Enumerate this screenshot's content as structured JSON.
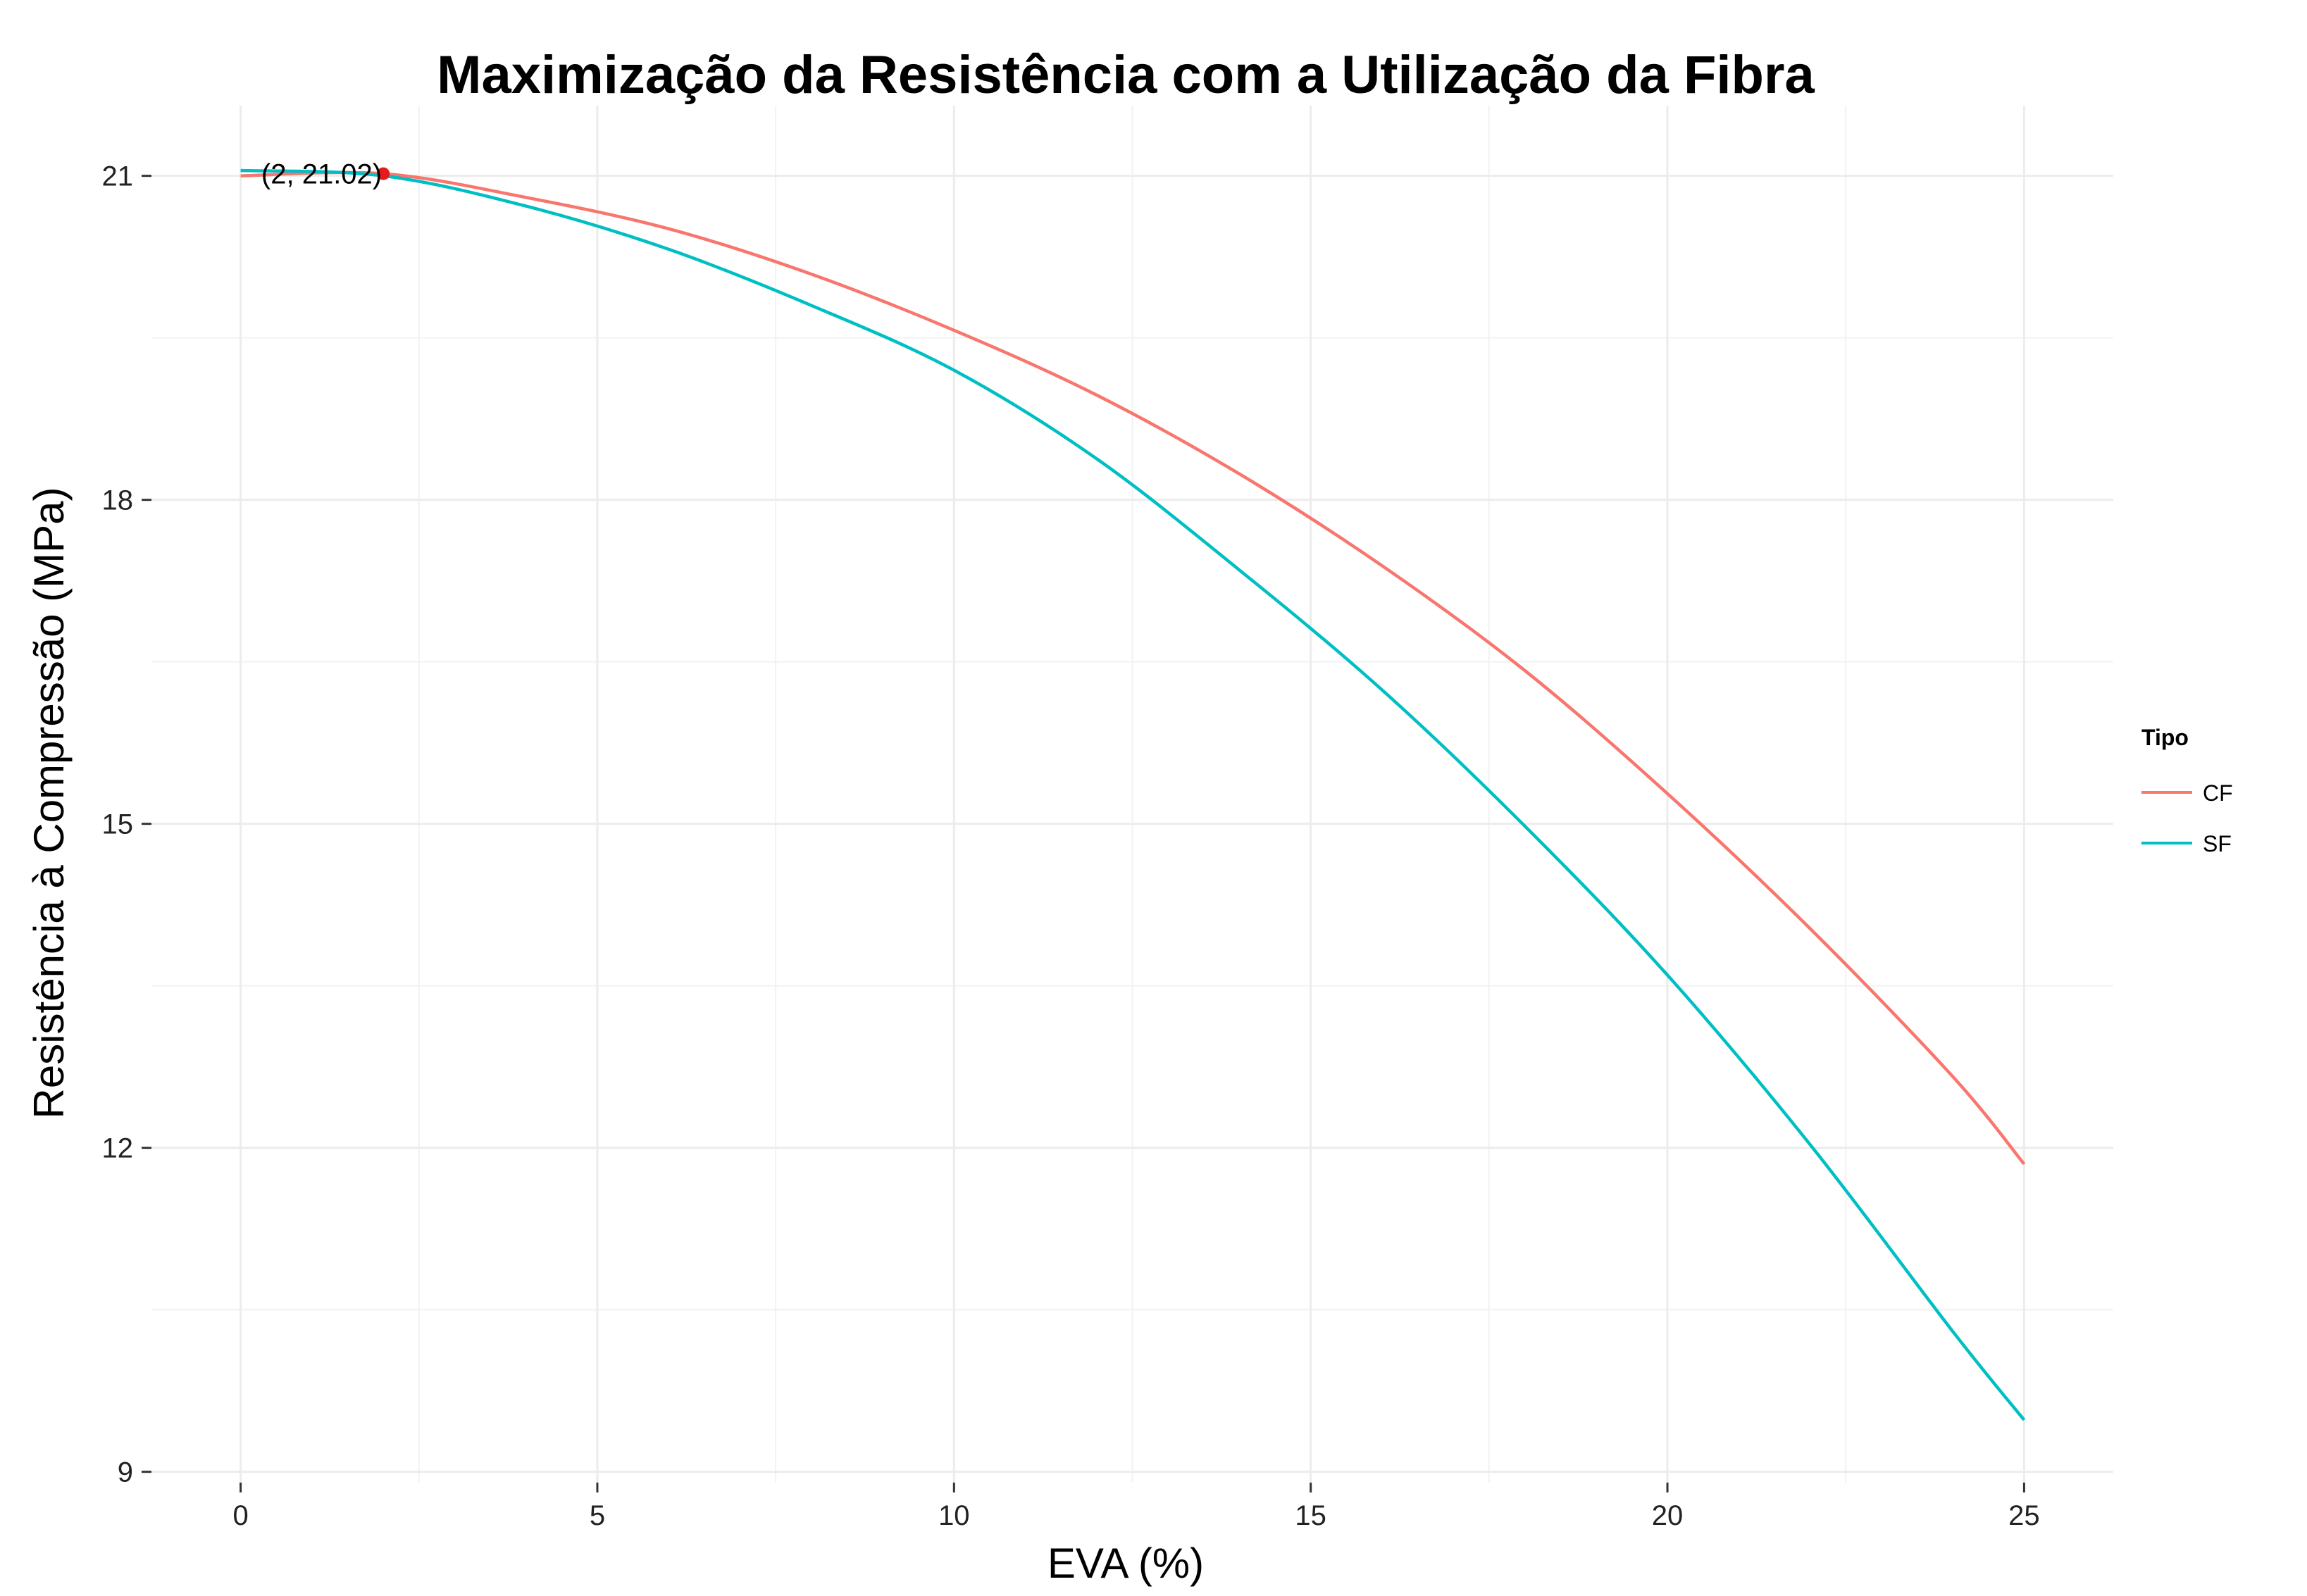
{
  "chart_data": {
    "type": "line",
    "title": "Maximização da Resistência com a Utilização da Fibra",
    "xlabel": "EVA (%)",
    "ylabel": "Resistência à Compressão (MPa)",
    "xlim": [
      -1.25,
      26.25
    ],
    "ylim": [
      8.9,
      21.65
    ],
    "x_ticks": [
      0,
      5,
      10,
      15,
      20,
      25
    ],
    "y_ticks": [
      9,
      12,
      15,
      18,
      21
    ],
    "grid": true,
    "legend": {
      "title": "Tipo",
      "placement": "right"
    },
    "series": [
      {
        "name": "CF",
        "color": "#F8766D",
        "x": [
          0,
          2,
          4,
          6,
          8,
          10,
          12,
          14,
          16,
          18,
          20,
          22,
          24,
          25
        ],
        "y": [
          21.0,
          21.02,
          20.8,
          20.51,
          20.09,
          19.57,
          18.97,
          18.24,
          17.39,
          16.42,
          15.28,
          14.03,
          12.66,
          11.85
        ]
      },
      {
        "name": "SF",
        "color": "#00BFC4",
        "x": [
          0,
          2,
          4,
          6,
          8,
          10,
          12,
          14,
          16,
          18,
          20,
          22,
          24,
          25
        ],
        "y": [
          21.05,
          21.0,
          20.72,
          20.32,
          19.8,
          19.2,
          18.38,
          17.35,
          16.24,
          14.98,
          13.6,
          12.03,
          10.3,
          9.48
        ]
      }
    ],
    "annotations": [
      {
        "text": "(2, 21.02)",
        "x": 2,
        "y": 21.02,
        "color": "#E41A1C"
      }
    ]
  }
}
